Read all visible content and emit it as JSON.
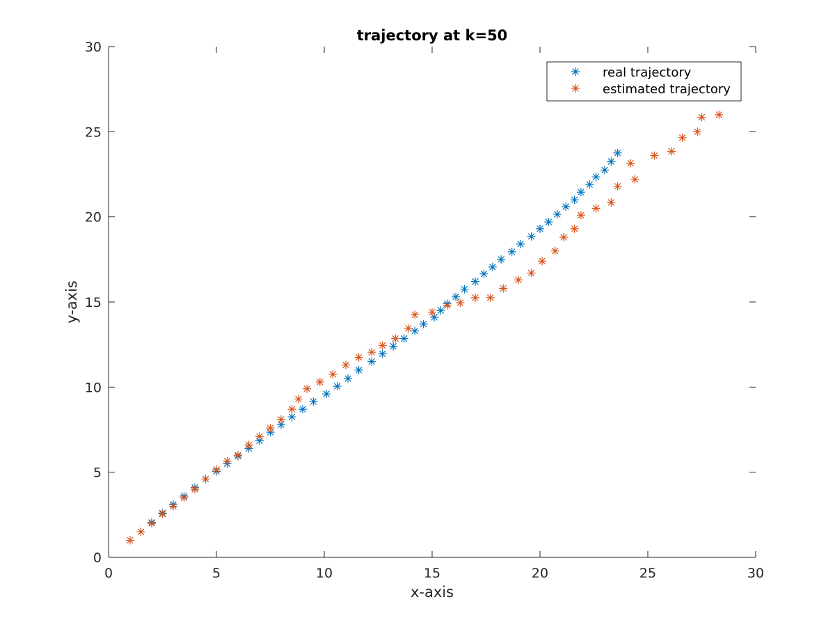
{
  "chart_data": {
    "type": "scatter",
    "title": "trajectory at k=50",
    "xlabel": "x-axis",
    "ylabel": "y-axis",
    "xlim": [
      0,
      30
    ],
    "ylim": [
      0,
      30
    ],
    "xticks": [
      "0",
      "5",
      "10",
      "15",
      "20",
      "25",
      "30"
    ],
    "yticks": [
      "0",
      "5",
      "10",
      "15",
      "20",
      "25",
      "30"
    ],
    "grid": false,
    "legend_position": "top-right",
    "marker": "asterisk",
    "series": [
      {
        "name": "real trajectory",
        "color": "#0072BD",
        "points": [
          [
            2.0,
            2.05
          ],
          [
            2.5,
            2.6
          ],
          [
            3.0,
            3.1
          ],
          [
            3.5,
            3.6
          ],
          [
            4.0,
            4.1
          ],
          [
            4.5,
            4.6
          ],
          [
            5.0,
            5.05
          ],
          [
            5.5,
            5.5
          ],
          [
            6.0,
            5.95
          ],
          [
            6.5,
            6.4
          ],
          [
            7.0,
            6.85
          ],
          [
            7.5,
            7.35
          ],
          [
            8.0,
            7.8
          ],
          [
            8.5,
            8.25
          ],
          [
            9.0,
            8.7
          ],
          [
            9.5,
            9.15
          ],
          [
            10.1,
            9.6
          ],
          [
            10.6,
            10.05
          ],
          [
            11.1,
            10.5
          ],
          [
            11.6,
            11.0
          ],
          [
            12.2,
            11.5
          ],
          [
            12.7,
            11.95
          ],
          [
            13.2,
            12.4
          ],
          [
            13.7,
            12.85
          ],
          [
            14.2,
            13.3
          ],
          [
            14.6,
            13.7
          ],
          [
            15.1,
            14.1
          ],
          [
            15.4,
            14.5
          ],
          [
            15.7,
            14.9
          ],
          [
            16.1,
            15.3
          ],
          [
            16.5,
            15.75
          ],
          [
            17.0,
            16.2
          ],
          [
            17.4,
            16.65
          ],
          [
            17.8,
            17.05
          ],
          [
            18.2,
            17.5
          ],
          [
            18.7,
            17.95
          ],
          [
            19.1,
            18.4
          ],
          [
            19.6,
            18.85
          ],
          [
            20.0,
            19.3
          ],
          [
            20.4,
            19.7
          ],
          [
            20.8,
            20.15
          ],
          [
            21.2,
            20.6
          ],
          [
            21.6,
            21.0
          ],
          [
            21.9,
            21.45
          ],
          [
            22.3,
            21.9
          ],
          [
            22.6,
            22.35
          ],
          [
            23.0,
            22.75
          ],
          [
            23.3,
            23.25
          ],
          [
            23.6,
            23.75
          ]
        ]
      },
      {
        "name": "estimated trajectory",
        "color": "#D95319",
        "points": [
          [
            1.0,
            1.0
          ],
          [
            1.5,
            1.5
          ],
          [
            2.0,
            2.0
          ],
          [
            2.5,
            2.55
          ],
          [
            3.0,
            3.0
          ],
          [
            3.5,
            3.5
          ],
          [
            4.0,
            4.0
          ],
          [
            4.5,
            4.6
          ],
          [
            5.0,
            5.15
          ],
          [
            5.5,
            5.65
          ],
          [
            6.0,
            6.0
          ],
          [
            6.5,
            6.6
          ],
          [
            7.0,
            7.1
          ],
          [
            7.5,
            7.6
          ],
          [
            8.0,
            8.1
          ],
          [
            8.5,
            8.7
          ],
          [
            8.8,
            9.3
          ],
          [
            9.2,
            9.9
          ],
          [
            9.8,
            10.3
          ],
          [
            10.4,
            10.75
          ],
          [
            11.0,
            11.3
          ],
          [
            11.6,
            11.75
          ],
          [
            12.2,
            12.05
          ],
          [
            12.7,
            12.45
          ],
          [
            13.3,
            12.85
          ],
          [
            13.9,
            13.45
          ],
          [
            14.2,
            14.25
          ],
          [
            15.0,
            14.4
          ],
          [
            15.7,
            14.8
          ],
          [
            16.3,
            14.95
          ],
          [
            17.0,
            15.25
          ],
          [
            17.7,
            15.25
          ],
          [
            18.3,
            15.8
          ],
          [
            19.0,
            16.3
          ],
          [
            19.6,
            16.7
          ],
          [
            20.1,
            17.4
          ],
          [
            20.7,
            18.0
          ],
          [
            21.1,
            18.8
          ],
          [
            21.6,
            19.3
          ],
          [
            21.9,
            20.1
          ],
          [
            22.6,
            20.5
          ],
          [
            23.3,
            20.85
          ],
          [
            23.6,
            21.8
          ],
          [
            24.2,
            23.15
          ],
          [
            24.4,
            22.2
          ],
          [
            25.3,
            23.6
          ],
          [
            26.1,
            23.85
          ],
          [
            26.6,
            24.65
          ],
          [
            27.3,
            25.0
          ],
          [
            27.5,
            25.85
          ],
          [
            28.3,
            26.0
          ]
        ]
      }
    ]
  }
}
